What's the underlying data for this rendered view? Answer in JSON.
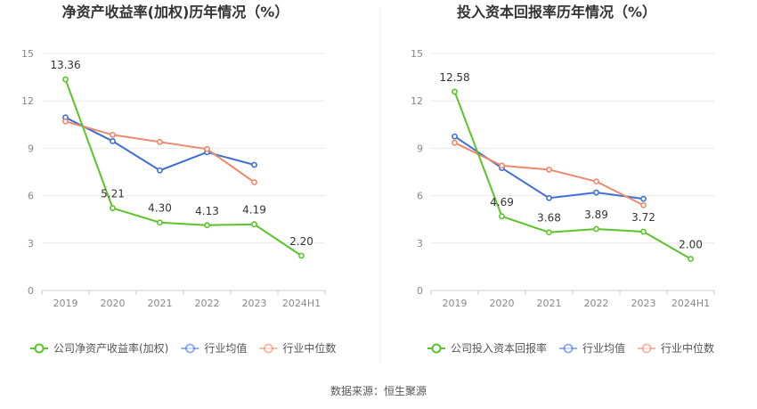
{
  "source": "数据来源：恒生聚源",
  "colors": {
    "company": "#5ac428",
    "industry_avg": "#3f6fd6",
    "industry_median": "#f0876a",
    "axis_text": "#888888",
    "grid": "#e8e8e8",
    "title": "#333333",
    "label": "#333333"
  },
  "chart_data": [
    {
      "type": "line",
      "title": "净资产收益率(加权)历年情况（%）",
      "categories": [
        "2019",
        "2020",
        "2021",
        "2022",
        "2023",
        "2024H1"
      ],
      "ylim": [
        0,
        15
      ],
      "yticks": [
        0,
        3,
        6,
        9,
        12,
        15
      ],
      "grid": true,
      "legend_position": "bottom",
      "series": [
        {
          "name": "公司净资产收益率(加权)",
          "key": "company",
          "values": [
            13.36,
            5.21,
            4.3,
            4.13,
            4.19,
            2.2
          ],
          "labels": [
            "13.36",
            "5.21",
            "4.30",
            "4.13",
            "4.19",
            "2.20"
          ]
        },
        {
          "name": "行业均值",
          "key": "industry_avg",
          "values": [
            10.95,
            9.45,
            7.6,
            8.75,
            7.95,
            null
          ]
        },
        {
          "name": "行业中位数",
          "key": "industry_median",
          "values": [
            10.7,
            9.85,
            9.4,
            8.95,
            6.85,
            null
          ]
        }
      ]
    },
    {
      "type": "line",
      "title": "投入资本回报率历年情况（%）",
      "categories": [
        "2019",
        "2020",
        "2021",
        "2022",
        "2023",
        "2024H1"
      ],
      "ylim": [
        0,
        15
      ],
      "yticks": [
        0,
        3,
        6,
        9,
        12,
        15
      ],
      "grid": true,
      "legend_position": "bottom",
      "series": [
        {
          "name": "公司投入资本回报率",
          "key": "company",
          "values": [
            12.58,
            4.69,
            3.68,
            3.89,
            3.72,
            2.0
          ],
          "labels": [
            "12.58",
            "4.69",
            "3.68",
            "3.89",
            "3.72",
            "2.00"
          ]
        },
        {
          "name": "行业均值",
          "key": "industry_avg",
          "values": [
            9.75,
            7.75,
            5.85,
            6.2,
            5.8,
            null
          ]
        },
        {
          "name": "行业中位数",
          "key": "industry_median",
          "values": [
            9.35,
            7.9,
            7.65,
            6.9,
            5.4,
            null
          ]
        }
      ]
    }
  ]
}
